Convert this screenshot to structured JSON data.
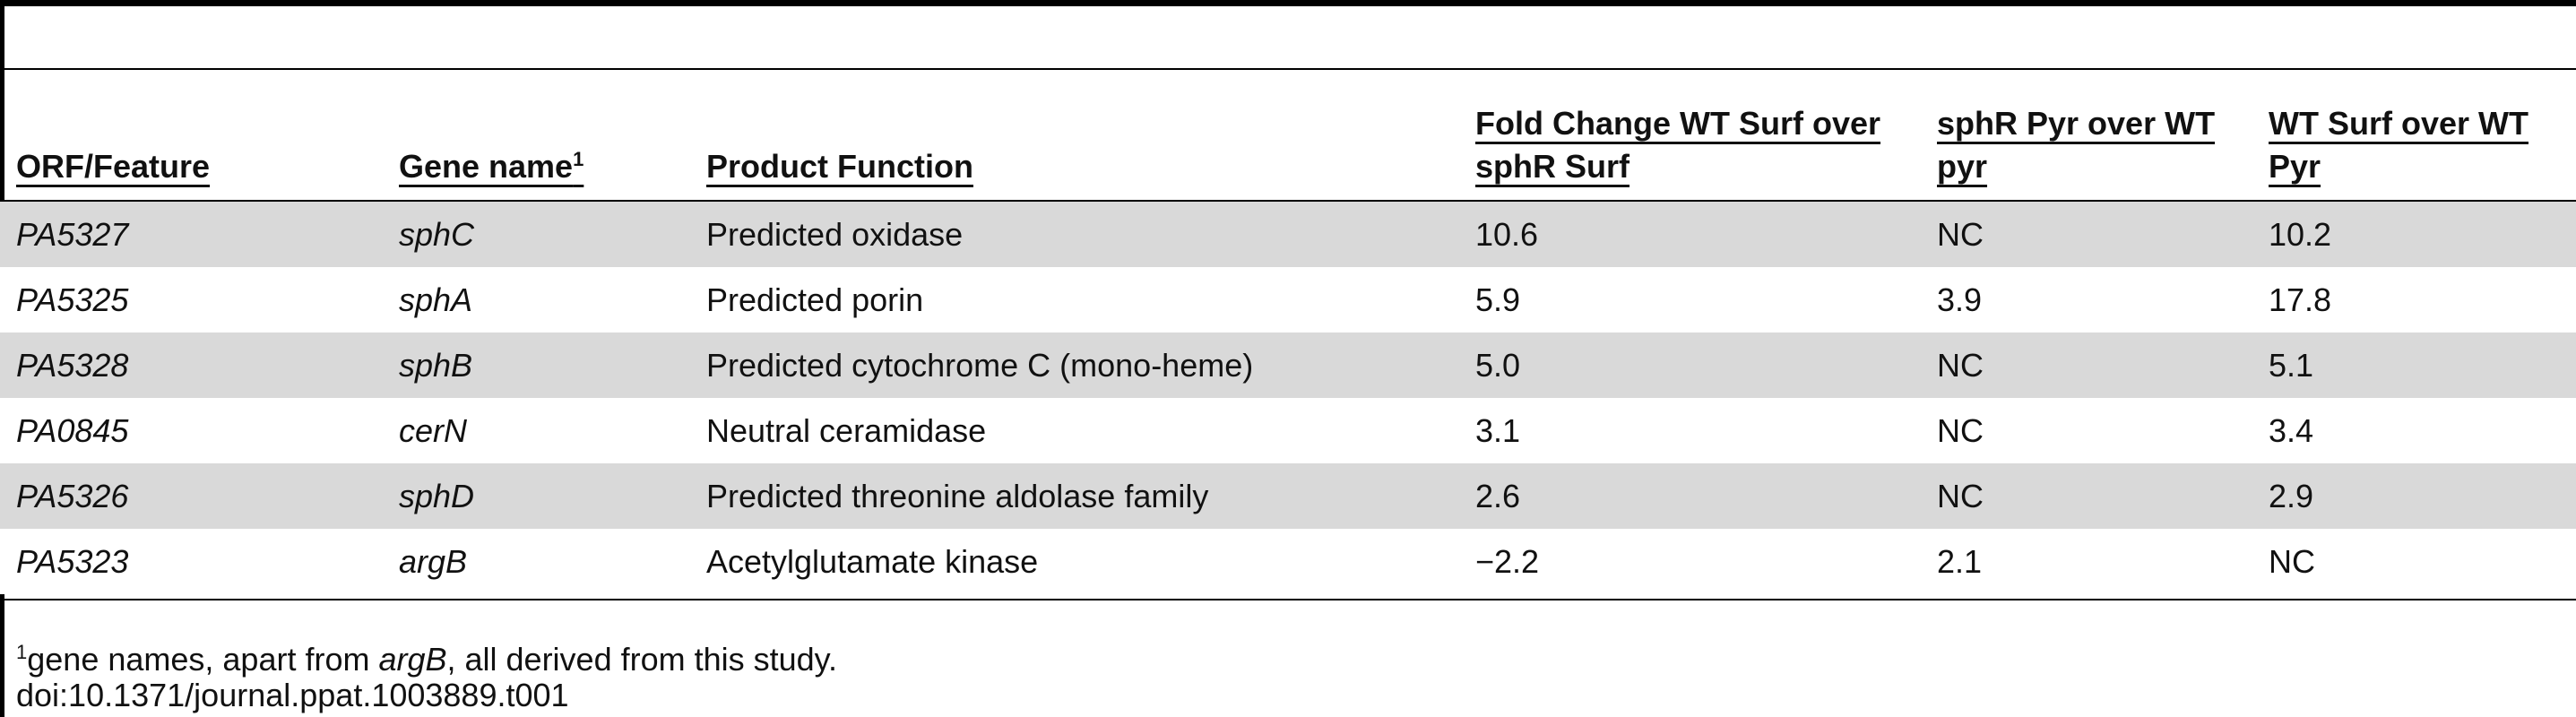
{
  "table": {
    "headers": [
      "ORF/Feature",
      {
        "text": "Gene name",
        "sup": "1"
      },
      "Product Function",
      "Fold Change WT Surf over sphR Surf",
      "sphR Pyr over WT pyr",
      "WT Surf over WT Pyr"
    ],
    "rows": [
      [
        "PA5327",
        "sphC",
        "Predicted oxidase",
        "10.6",
        "NC",
        "10.2"
      ],
      [
        "PA5325",
        "sphA",
        "Predicted porin",
        "5.9",
        "3.9",
        "17.8"
      ],
      [
        "PA5328",
        "sphB",
        "Predicted cytochrome C (mono-heme)",
        "5.0",
        "NC",
        "5.1"
      ],
      [
        "PA0845",
        "cerN",
        "Neutral ceramidase",
        "3.1",
        "NC",
        "3.4"
      ],
      [
        "PA5326",
        "sphD",
        "Predicted threonine aldolase family",
        "2.6",
        "NC",
        "2.9"
      ],
      [
        "PA5323",
        "argB",
        "Acetylglutamate kinase",
        "−2.2",
        "2.1",
        "NC"
      ]
    ]
  },
  "footnote": {
    "marker": "1",
    "parts": [
      "gene names, apart from ",
      "argB",
      ", all derived from this study."
    ]
  },
  "doi": "doi:10.1371/journal.ppat.1003889.t001"
}
